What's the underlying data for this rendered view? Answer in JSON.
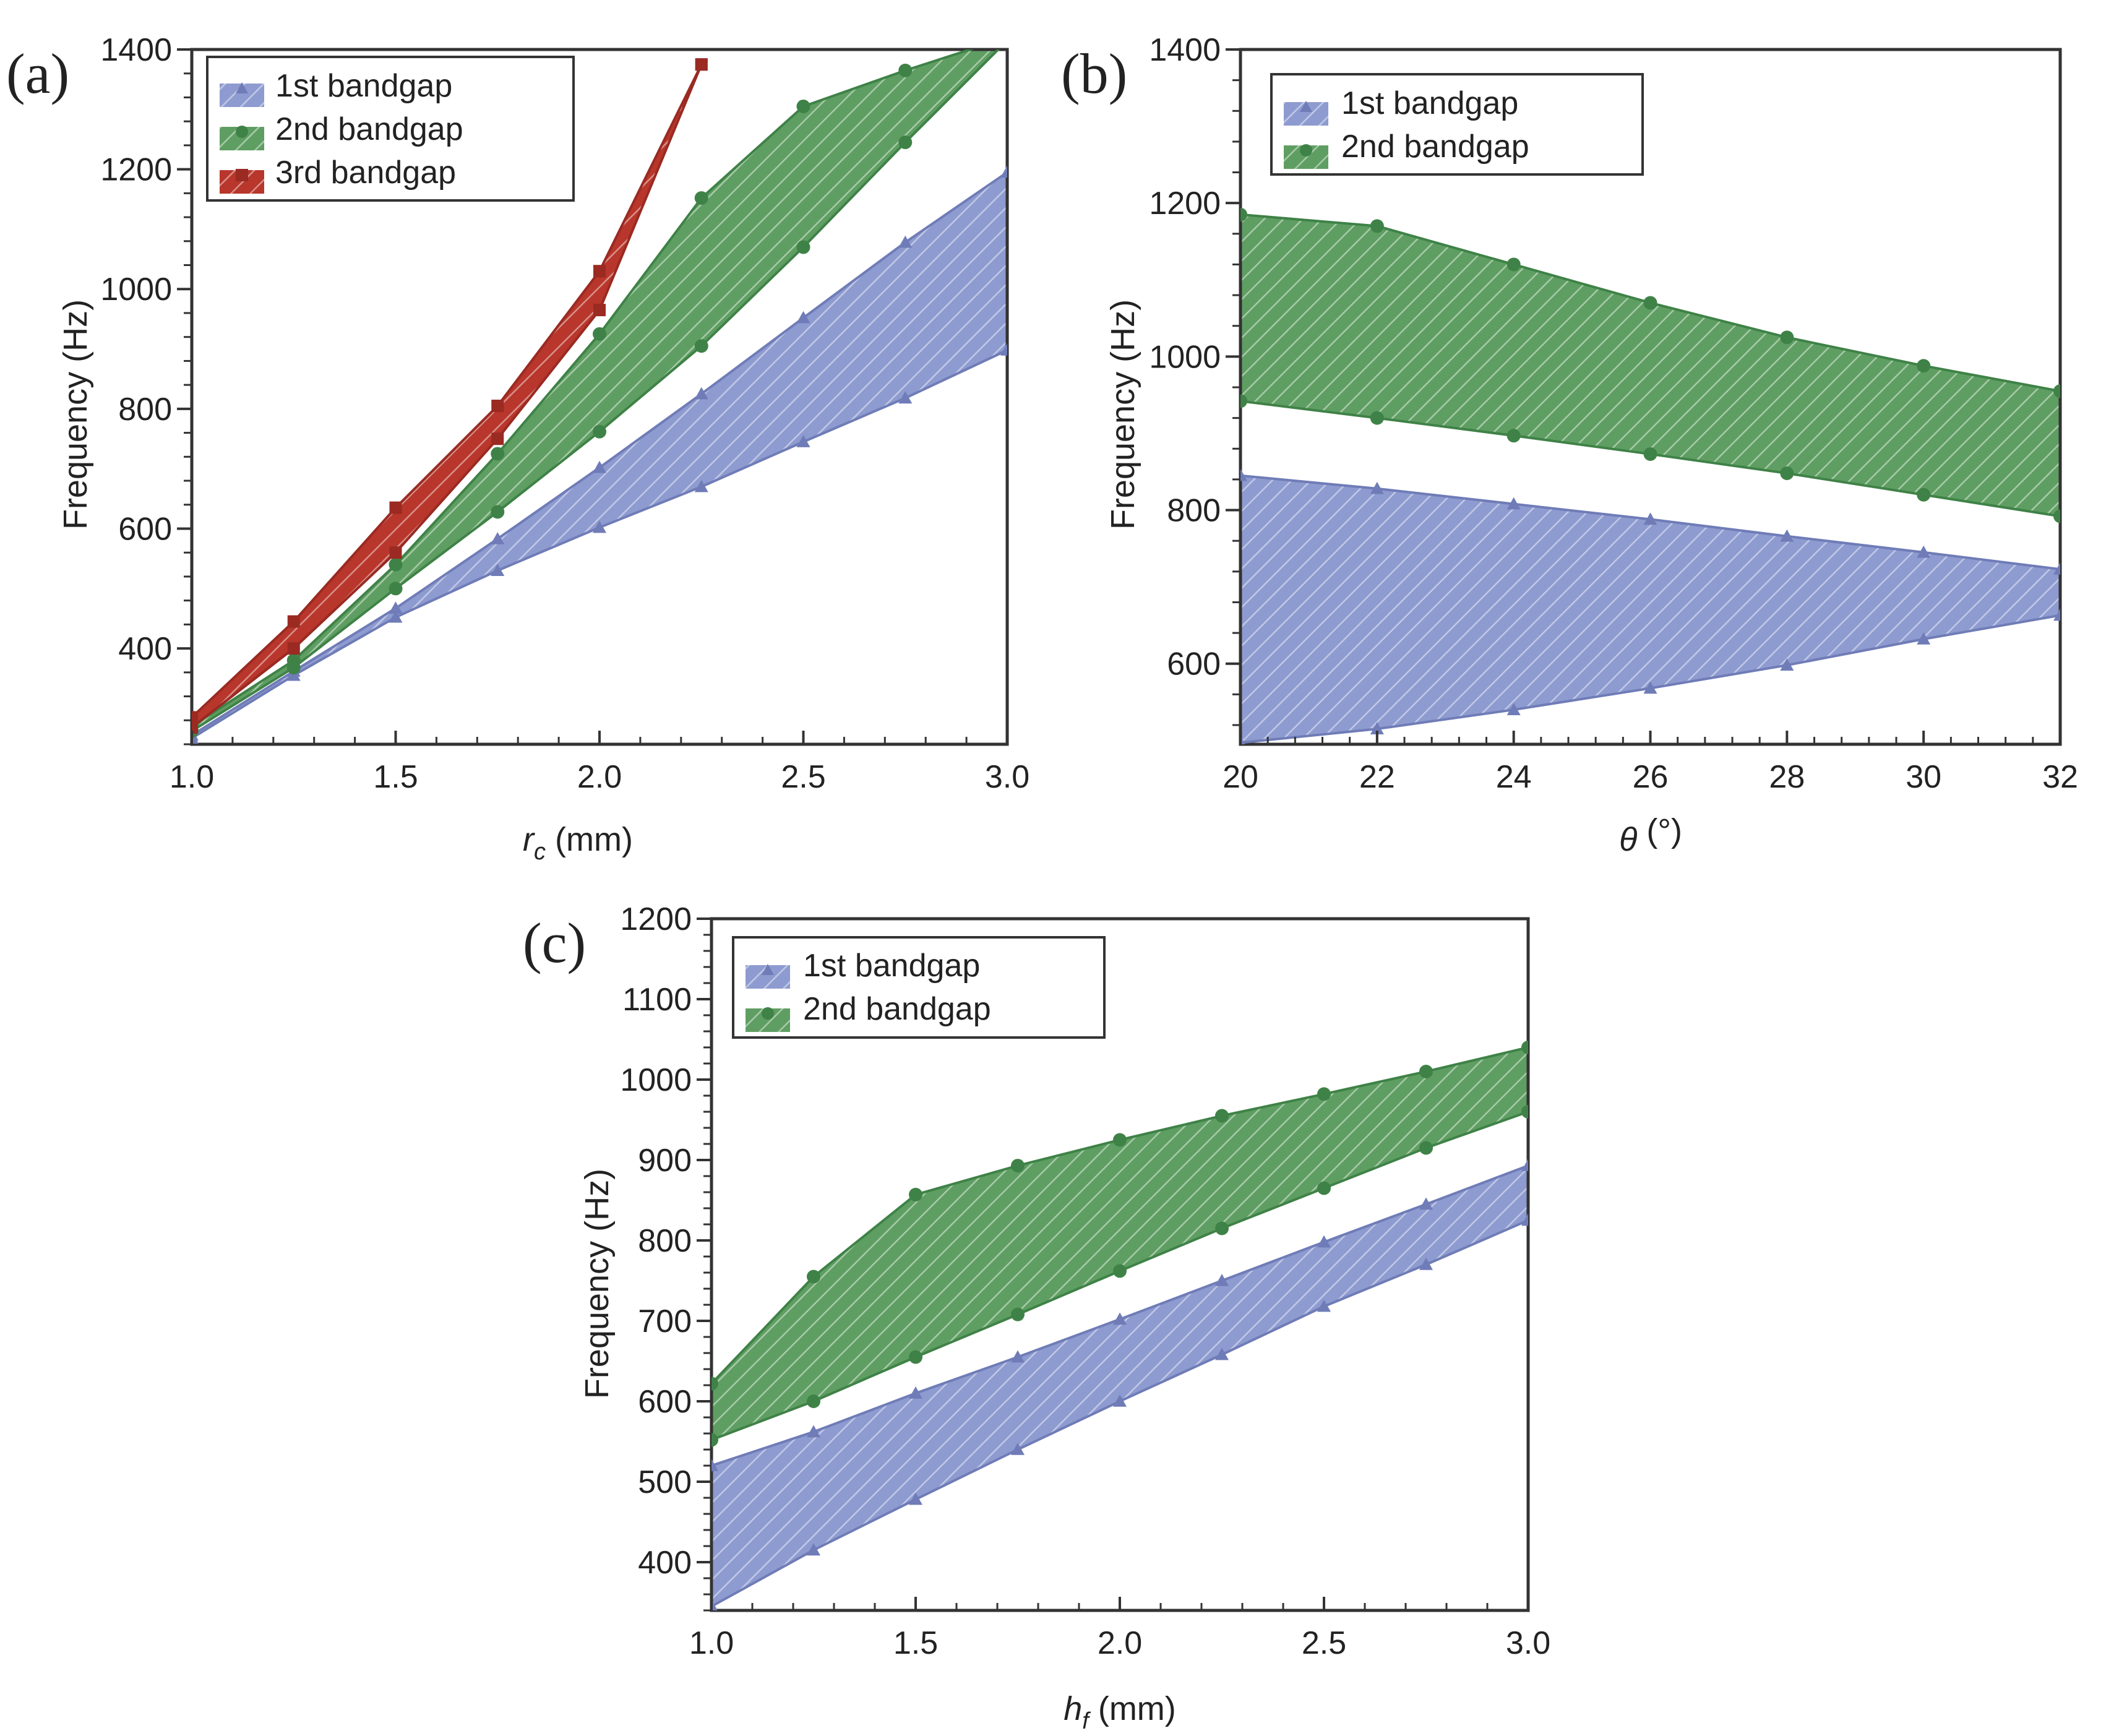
{
  "figure": {
    "colors": {
      "band1_fill": "#8e9bd0",
      "band1_line": "#6f7cb7",
      "band2_fill": "#5f9e62",
      "band2_line": "#3f8247",
      "band3_fill": "#b8362b",
      "band3_line": "#9a2a22",
      "axis": "#333333"
    }
  },
  "chart_data": [
    {
      "type": "area",
      "panel_label": "(a)",
      "xlabel_var": "r",
      "xlabel_sub": "c",
      "xlabel_unit": " (mm)",
      "ylabel": "Frequency (Hz)",
      "xlim": [
        1.0,
        3.0
      ],
      "ylim": [
        240,
        1400
      ],
      "xticks": [
        1.0,
        1.5,
        2.0,
        2.5,
        3.0
      ],
      "xtick_labels": [
        "1.0",
        "1.5",
        "2.0",
        "2.5",
        "3.0"
      ],
      "yticks": [
        400,
        600,
        800,
        1000,
        1200,
        1400
      ],
      "ytick_labels": [
        "400",
        "600",
        "800",
        "1000",
        "1200",
        "1400"
      ],
      "legend": [
        "1st bandgap",
        "2nd bandgap",
        "3rd bandgap"
      ],
      "series": [
        {
          "name": "1st bandgap",
          "marker": "triangle",
          "x": [
            1.0,
            1.25,
            1.5,
            1.75,
            2.0,
            2.25,
            2.5,
            2.75,
            3.0
          ],
          "lower": [
            250,
            355,
            452,
            530,
            602,
            670,
            745,
            818,
            898
          ],
          "upper": [
            255,
            362,
            467,
            583,
            702,
            825,
            952,
            1078,
            1195
          ]
        },
        {
          "name": "2nd bandgap",
          "marker": "circle",
          "x": [
            1.0,
            1.25,
            1.5,
            1.75,
            2.0,
            2.25,
            2.5,
            2.75,
            3.0
          ],
          "lower": [
            262,
            368,
            500,
            628,
            762,
            905,
            1070,
            1245,
            1415
          ],
          "upper": [
            270,
            380,
            540,
            725,
            925,
            1152,
            1305,
            1365,
            1420
          ]
        },
        {
          "name": "3rd bandgap",
          "marker": "square",
          "x": [
            1.0,
            1.25,
            1.5,
            1.75,
            2.0,
            2.25
          ],
          "lower": [
            268,
            400,
            560,
            750,
            965,
            1375
          ],
          "upper": [
            285,
            445,
            635,
            805,
            1030,
            1375
          ]
        }
      ]
    },
    {
      "type": "area",
      "panel_label": "(b)",
      "xlabel_var": "θ",
      "xlabel_sub": "",
      "xlabel_unit": " (°)",
      "ylabel": "Frequency (Hz)",
      "xlim": [
        20,
        32
      ],
      "ylim": [
        495,
        1400
      ],
      "xticks": [
        20,
        22,
        24,
        26,
        28,
        30,
        32
      ],
      "xtick_labels": [
        "20",
        "22",
        "24",
        "26",
        "28",
        "30",
        "32"
      ],
      "yticks": [
        600,
        800,
        1000,
        1200,
        1400
      ],
      "ytick_labels": [
        "600",
        "800",
        "1000",
        "1200",
        "1400"
      ],
      "legend": [
        "1st bandgap",
        "2nd bandgap"
      ],
      "series": [
        {
          "name": "1st bandgap",
          "marker": "triangle",
          "x": [
            20,
            22,
            24,
            26,
            28,
            30,
            32
          ],
          "lower": [
            497,
            515,
            540,
            568,
            598,
            632,
            663
          ],
          "upper": [
            845,
            828,
            808,
            788,
            766,
            745,
            723
          ]
        },
        {
          "name": "2nd bandgap",
          "marker": "circle",
          "x": [
            20,
            22,
            24,
            26,
            28,
            30,
            32
          ],
          "lower": [
            942,
            920,
            897,
            873,
            848,
            820,
            792
          ],
          "upper": [
            1185,
            1170,
            1120,
            1070,
            1025,
            988,
            955
          ]
        }
      ]
    },
    {
      "type": "area",
      "panel_label": "(c)",
      "xlabel_var": "h",
      "xlabel_sub": "f",
      "xlabel_unit": " (mm)",
      "ylabel": "Frequency (Hz)",
      "xlim": [
        1.0,
        3.0
      ],
      "ylim": [
        340,
        1200
      ],
      "xticks": [
        1.0,
        1.5,
        2.0,
        2.5,
        3.0
      ],
      "xtick_labels": [
        "1.0",
        "1.5",
        "2.0",
        "2.5",
        "3.0"
      ],
      "yticks": [
        400,
        500,
        600,
        700,
        800,
        900,
        1000,
        1100,
        1200
      ],
      "ytick_labels": [
        "400",
        "500",
        "600",
        "700",
        "800",
        "900",
        "1000",
        "1100",
        "1200"
      ],
      "legend": [
        "1st bandgap",
        "2nd bandgap"
      ],
      "series": [
        {
          "name": "1st bandgap",
          "marker": "triangle",
          "x": [
            1.0,
            1.25,
            1.5,
            1.75,
            2.0,
            2.25,
            2.5,
            2.75,
            3.0
          ],
          "lower": [
            345,
            415,
            478,
            540,
            600,
            658,
            718,
            770,
            825
          ],
          "upper": [
            520,
            562,
            610,
            655,
            702,
            750,
            798,
            845,
            893
          ]
        },
        {
          "name": "2nd bandgap",
          "marker": "circle",
          "x": [
            1.0,
            1.25,
            1.5,
            1.75,
            2.0,
            2.25,
            2.5,
            2.75,
            3.0
          ],
          "lower": [
            552,
            600,
            655,
            708,
            762,
            815,
            865,
            915,
            960
          ],
          "upper": [
            622,
            755,
            857,
            893,
            925,
            955,
            982,
            1010,
            1040
          ]
        }
      ]
    }
  ]
}
